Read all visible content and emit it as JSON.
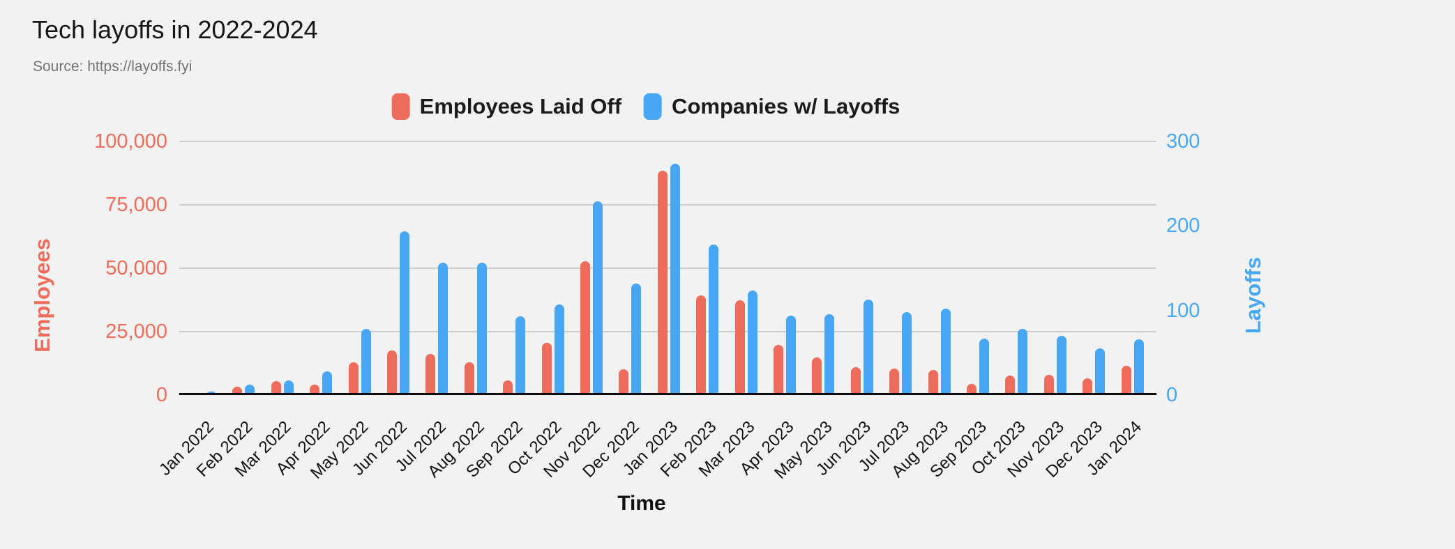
{
  "title": "Tech layoffs in 2022-2024",
  "source": "Source: https://layoffs.fyi",
  "colors": {
    "employees": "#ED6C5B",
    "companies": "#47A7F5",
    "background": "#F2F2F2",
    "gridline": "#CCCCCC",
    "baseline": "#0D0D0D",
    "title_text": "#161616",
    "source_text": "#747474"
  },
  "legend": [
    {
      "label": "Employees Laid Off",
      "color": "#ED6C5B"
    },
    {
      "label": "Companies w/ Layoffs",
      "color": "#47A7F5"
    }
  ],
  "chart_data": {
    "type": "bar",
    "title": "Tech layoffs in 2022-2024",
    "xlabel": "Time",
    "grid": true,
    "legend_position": "top",
    "y_left": {
      "label": "Employees",
      "color": "#ED6C5B",
      "min": 0,
      "max": 100000,
      "ticks": [
        "0",
        "25,000",
        "50,000",
        "75,000",
        "100,000"
      ]
    },
    "y_right": {
      "label": "Layoffs",
      "color": "#47A7F5",
      "min": 0,
      "max": 300,
      "ticks": [
        "0",
        "100",
        "200",
        "300"
      ]
    },
    "categories": [
      "Jan 2022",
      "Feb 2022",
      "Mar 2022",
      "Apr 2022",
      "May 2022",
      "Jun 2022",
      "Jul 2022",
      "Aug 2022",
      "Sep 2022",
      "Oct 2022",
      "Nov 2022",
      "Dec 2022",
      "Jan 2023",
      "Feb 2023",
      "Mar 2023",
      "Apr 2023",
      "May 2023",
      "Jun 2023",
      "Jul 2023",
      "Aug 2023",
      "Sep 2023",
      "Oct 2023",
      "Nov 2023",
      "Dec 2023",
      "Jan 2024"
    ],
    "series": [
      {
        "name": "Employees Laid Off",
        "axis": "left",
        "color": "#ED6C5B",
        "values": [
          510,
          3400,
          5600,
          4000,
          12900,
          17600,
          16200,
          12900,
          5800,
          20600,
          52800,
          10100,
          88500,
          39200,
          37300,
          19800,
          14800,
          11000,
          10500,
          10000,
          4400,
          7800,
          7900,
          6600,
          11600
        ]
      },
      {
        "name": "Companies w/ Layoffs",
        "axis": "right",
        "color": "#47A7F5",
        "values": [
          4,
          12,
          17,
          28,
          78,
          194,
          157,
          157,
          93,
          107,
          229,
          132,
          274,
          178,
          124,
          94,
          96,
          113,
          98,
          102,
          67,
          78,
          70,
          55,
          66
        ]
      }
    ]
  }
}
